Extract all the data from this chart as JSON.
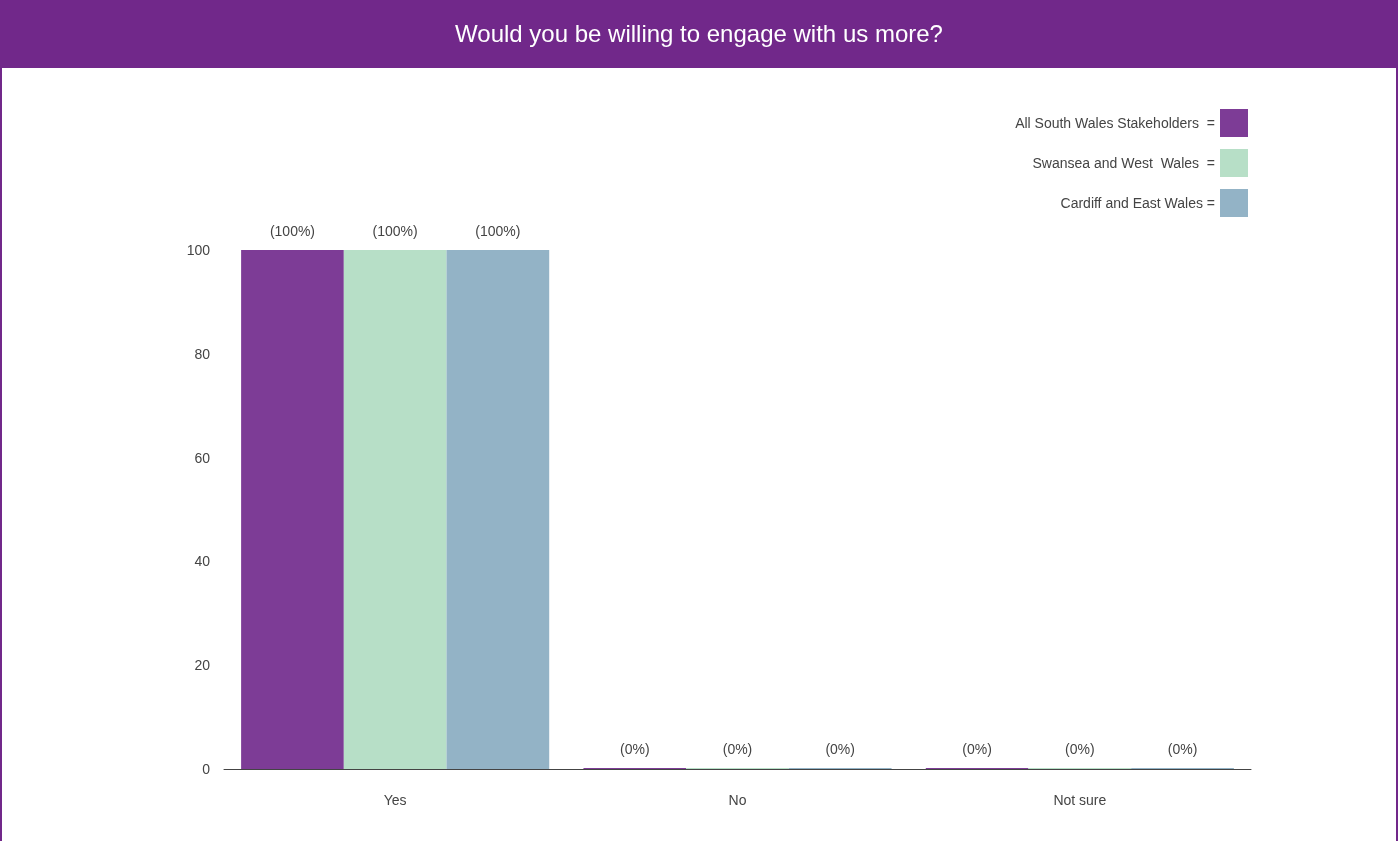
{
  "chart_data": {
    "type": "bar",
    "title": "Would you be willing to engage with us more?",
    "categories": [
      "Yes",
      "No",
      "Not sure"
    ],
    "series": [
      {
        "name": "All South Wales Stakeholders  =",
        "color": "#7d3c96",
        "values": [
          100,
          0,
          0
        ],
        "value_labels": [
          "(100%)",
          "(0%)",
          "(0%)"
        ]
      },
      {
        "name": "Swansea and West  Wales  =",
        "color": "#b7dfc7",
        "values": [
          100,
          0,
          0
        ],
        "value_labels": [
          "(100%)",
          "(0%)",
          "(0%)"
        ]
      },
      {
        "name": "Cardiff and East Wales =",
        "color": "#93b3c6",
        "values": [
          100,
          0,
          0
        ],
        "value_labels": [
          "(100%)",
          "(0%)",
          "(0%)"
        ]
      }
    ],
    "ylim": [
      0,
      100
    ],
    "yticks": [
      0,
      20,
      40,
      60,
      80,
      100
    ],
    "grid": false,
    "legend": "top right"
  }
}
